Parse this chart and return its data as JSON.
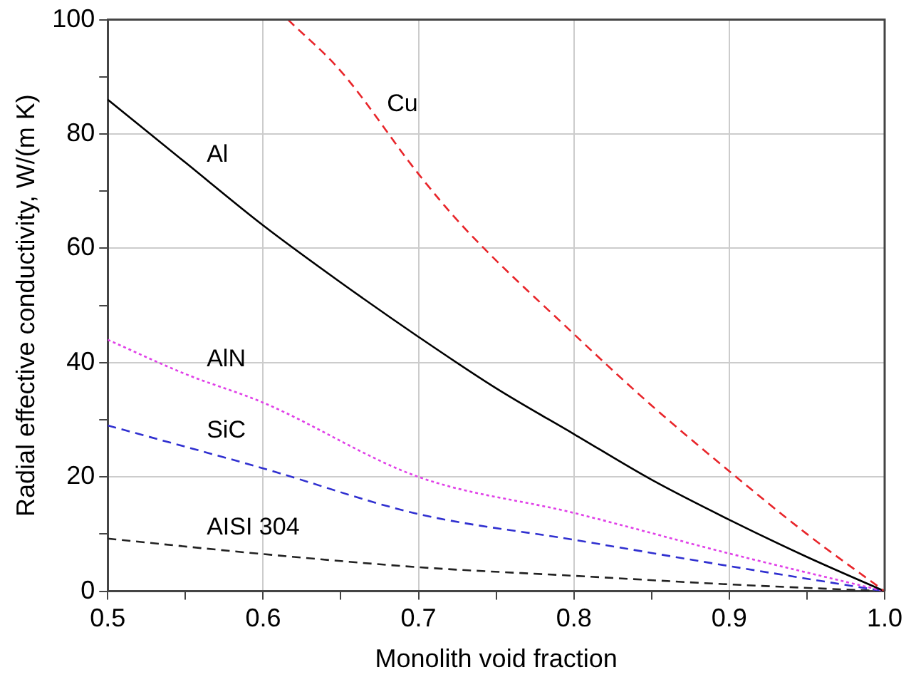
{
  "chart_data": {
    "type": "line",
    "xlabel": "Monolith void fraction",
    "ylabel": "Radial effective conductivity, W/(m K)",
    "xlim": [
      0.5,
      1.0
    ],
    "ylim": [
      0,
      100
    ],
    "xticks": [
      0.5,
      {
        "value": 0.55,
        "label": null
      },
      0.6,
      {
        "value": 0.65,
        "label": null
      },
      0.7,
      {
        "value": 0.75,
        "label": null
      },
      0.8,
      {
        "value": 0.85,
        "label": null
      },
      0.9,
      {
        "value": 0.95,
        "label": null
      },
      {
        "value": 1,
        "label": "1.0"
      }
    ],
    "yticks": [
      0,
      {
        "value": 10,
        "label": null
      },
      20,
      {
        "value": 30,
        "label": null
      },
      40,
      {
        "value": 50,
        "label": null
      },
      60,
      {
        "value": 70,
        "label": null
      },
      80,
      {
        "value": 90,
        "label": null
      },
      100
    ],
    "grid": true,
    "legend": false,
    "marker": "none",
    "series": [
      {
        "name": "Cu",
        "color": "#e8252a",
        "line_style": "dashed",
        "x": [
          0.616,
          0.65,
          0.7,
          0.728,
          0.8,
          0.85,
          0.9,
          0.95,
          1.0
        ],
        "values": [
          100,
          91,
          73,
          64,
          45,
          32.5,
          21,
          10,
          0
        ]
      },
      {
        "name": "Al",
        "color": "#000000",
        "line_style": "solid",
        "x": [
          0.5,
          0.55,
          0.6,
          0.65,
          0.7,
          0.75,
          0.8,
          0.85,
          0.9,
          0.95,
          1.0
        ],
        "values": [
          86,
          75,
          64,
          54,
          44.5,
          35.5,
          27.5,
          19.5,
          12.5,
          6,
          0
        ]
      },
      {
        "name": "AlN",
        "color": "#e040e8",
        "line_style": "dotted",
        "x": [
          0.5,
          0.55,
          0.6,
          0.7,
          0.8,
          0.9,
          1.0
        ],
        "values": [
          44,
          38,
          33,
          20,
          13.7,
          6.6,
          0
        ]
      },
      {
        "name": "SiC",
        "color": "#3030d0",
        "line_style": "dashed",
        "x": [
          0.5,
          0.6,
          0.7,
          0.8,
          0.9,
          1.0
        ],
        "values": [
          29,
          21.5,
          13.5,
          9,
          4.4,
          0
        ]
      },
      {
        "name": "AISI 304",
        "color": "#222222",
        "line_style": "dashed",
        "x": [
          0.5,
          0.6,
          0.7,
          0.8,
          0.9,
          1.0
        ],
        "values": [
          9.2,
          6.5,
          4.2,
          2.7,
          1.2,
          0
        ]
      }
    ]
  }
}
